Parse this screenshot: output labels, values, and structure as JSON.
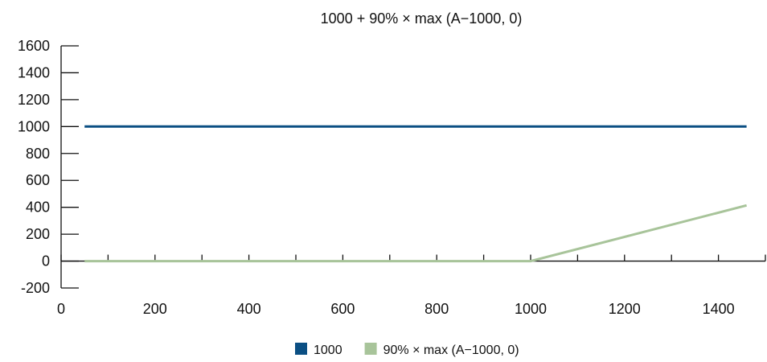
{
  "chart_data": {
    "type": "line",
    "title": "1000 + 90% × max (A−1000, 0)",
    "xlabel": "",
    "ylabel": "",
    "xlim": [
      0,
      1500
    ],
    "ylim": [
      -200,
      1600
    ],
    "x_ticks": [
      0,
      200,
      400,
      600,
      800,
      1000,
      1200,
      1400
    ],
    "y_ticks": [
      -200,
      0,
      200,
      400,
      600,
      800,
      1000,
      1200,
      1400,
      1600
    ],
    "x_minor_ticks": [
      100,
      300,
      500,
      700,
      900,
      1100,
      1300,
      1500
    ],
    "grid": false,
    "legend_position": "bottom",
    "series": [
      {
        "name": "1000",
        "color": "#0b4f83",
        "points": [
          [
            50,
            1000
          ],
          [
            1000,
            1000
          ],
          [
            1500,
            1000
          ]
        ]
      },
      {
        "name": "90% × max (A−1000, 0)",
        "color": "#a8c49a",
        "points": [
          [
            50,
            0
          ],
          [
            1000,
            0
          ],
          [
            1500,
            450
          ]
        ]
      }
    ]
  }
}
